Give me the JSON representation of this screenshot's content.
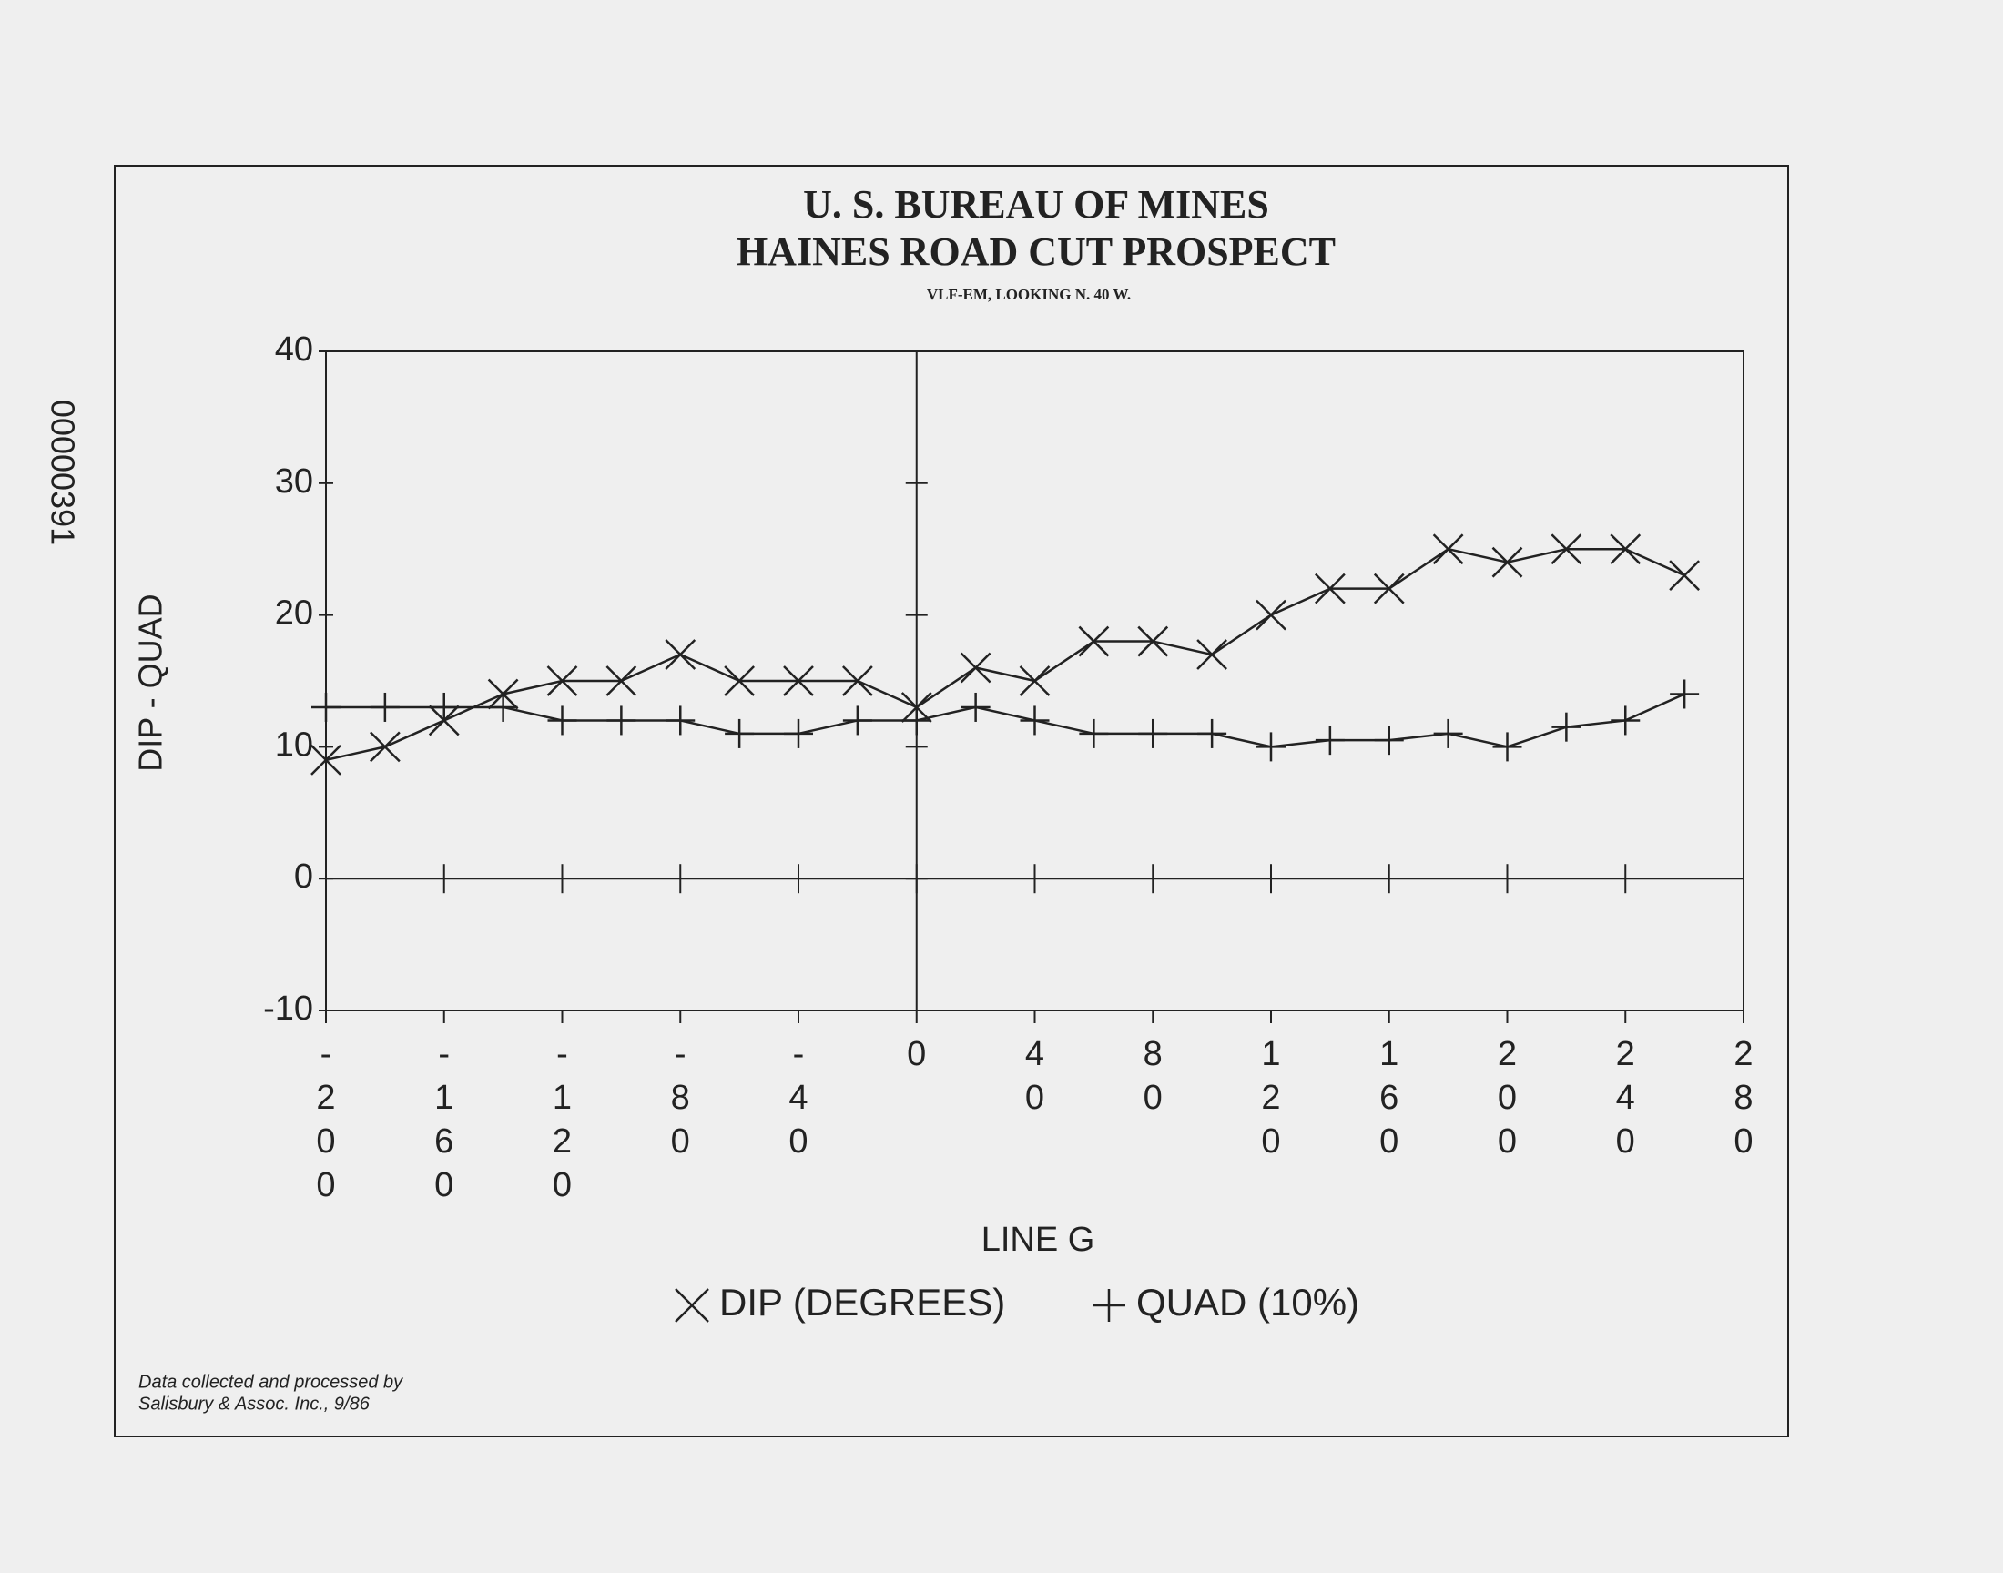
{
  "chart_data": {
    "type": "line",
    "title": [
      "U. S. BUREAU OF MINES",
      "HAINES ROAD CUT PROSPECT"
    ],
    "subtitle": "VLF-EM, LOOKING N. 40 W.",
    "y_label": "DIP - QUAD",
    "x_label": "LINE G",
    "note": [
      "Data collected and processed by",
      "Salisbury & Assoc. Inc., 9/86"
    ],
    "stamp": "00000391",
    "x": [
      -200,
      -180,
      -160,
      -140,
      -120,
      -100,
      -80,
      -60,
      -40,
      -20,
      0,
      20,
      40,
      60,
      80,
      100,
      120,
      140,
      160,
      180,
      200,
      220,
      240,
      260
    ],
    "series": [
      {
        "name": "DIP (DEGREES)",
        "marker": "x",
        "color": "#222222",
        "values": [
          9,
          10,
          12,
          14,
          15,
          15,
          17,
          15,
          15,
          15,
          13,
          16,
          15,
          18,
          18,
          17,
          20,
          22,
          22,
          25,
          24,
          25,
          25,
          23
        ]
      },
      {
        "name": "QUAD (10%)",
        "marker": "+",
        "color": "#222222",
        "values": [
          13,
          13,
          13,
          13,
          12,
          12,
          12,
          11,
          11,
          12,
          12,
          13,
          12,
          11,
          11,
          11,
          10,
          10.5,
          10.5,
          11,
          10,
          11.5,
          12,
          14
        ]
      }
    ],
    "xlim": [
      -200,
      280
    ],
    "xticks": [
      -200,
      -160,
      -120,
      -80,
      -40,
      0,
      40,
      80,
      120,
      160,
      200,
      240,
      280
    ],
    "ylim": [
      -10,
      40
    ],
    "yticks": [
      -10,
      0,
      10,
      20,
      30,
      40
    ]
  }
}
